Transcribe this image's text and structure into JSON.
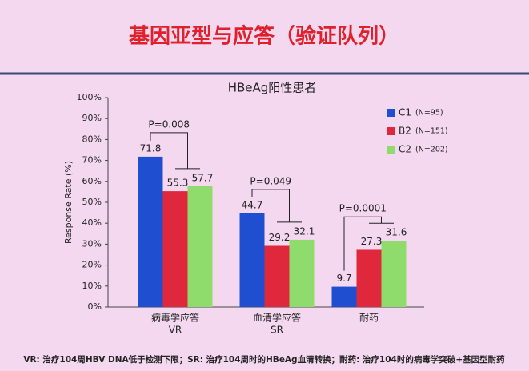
{
  "title": "基因亚型与应答（验证队列）",
  "footnote": "VR: 治疗104周HBV DNA低于检测下限；SR: 治疗104周时的HBeAg血清转换；耐药: 治疗104时的病毒学突破+基因型耐药",
  "chart_data": {
    "type": "bar",
    "title": "HBeAg阳性患者",
    "y_label": "Response Rate (%)",
    "categories": [
      "病毒学应答",
      "血清学应答",
      "耐药"
    ],
    "category_sublabels": [
      "VR",
      "SR",
      null
    ],
    "series": [
      {
        "name": "C1",
        "n_label": "(N=95)",
        "color": "#1f4fd0",
        "values": [
          71.8,
          44.7,
          9.7
        ]
      },
      {
        "name": "B2",
        "n_label": "(N=151)",
        "color": "#e0283c",
        "values": [
          55.3,
          29.2,
          27.3
        ]
      },
      {
        "name": "C2",
        "n_label": "(N=202)",
        "color": "#8fdc6c",
        "values": [
          57.7,
          32.1,
          31.6
        ]
      }
    ],
    "annotations": [
      "P=0.008",
      "P=0.049",
      "P=0.0001"
    ],
    "ylim": [
      0,
      100
    ],
    "yticks": [
      {
        "value": 0,
        "label": "0%"
      },
      {
        "value": 10,
        "label": "10%"
      },
      {
        "value": 20,
        "label": "20%"
      },
      {
        "value": 30,
        "label": "30%"
      },
      {
        "value": 40,
        "label": "40%"
      },
      {
        "value": 50,
        "label": "50%"
      },
      {
        "value": 60,
        "label": "60%"
      },
      {
        "value": 70,
        "label": "70%"
      },
      {
        "value": 80,
        "label": "80%"
      },
      {
        "value": 90,
        "label": "90%"
      },
      {
        "value": 100,
        "label": "100%"
      }
    ]
  }
}
